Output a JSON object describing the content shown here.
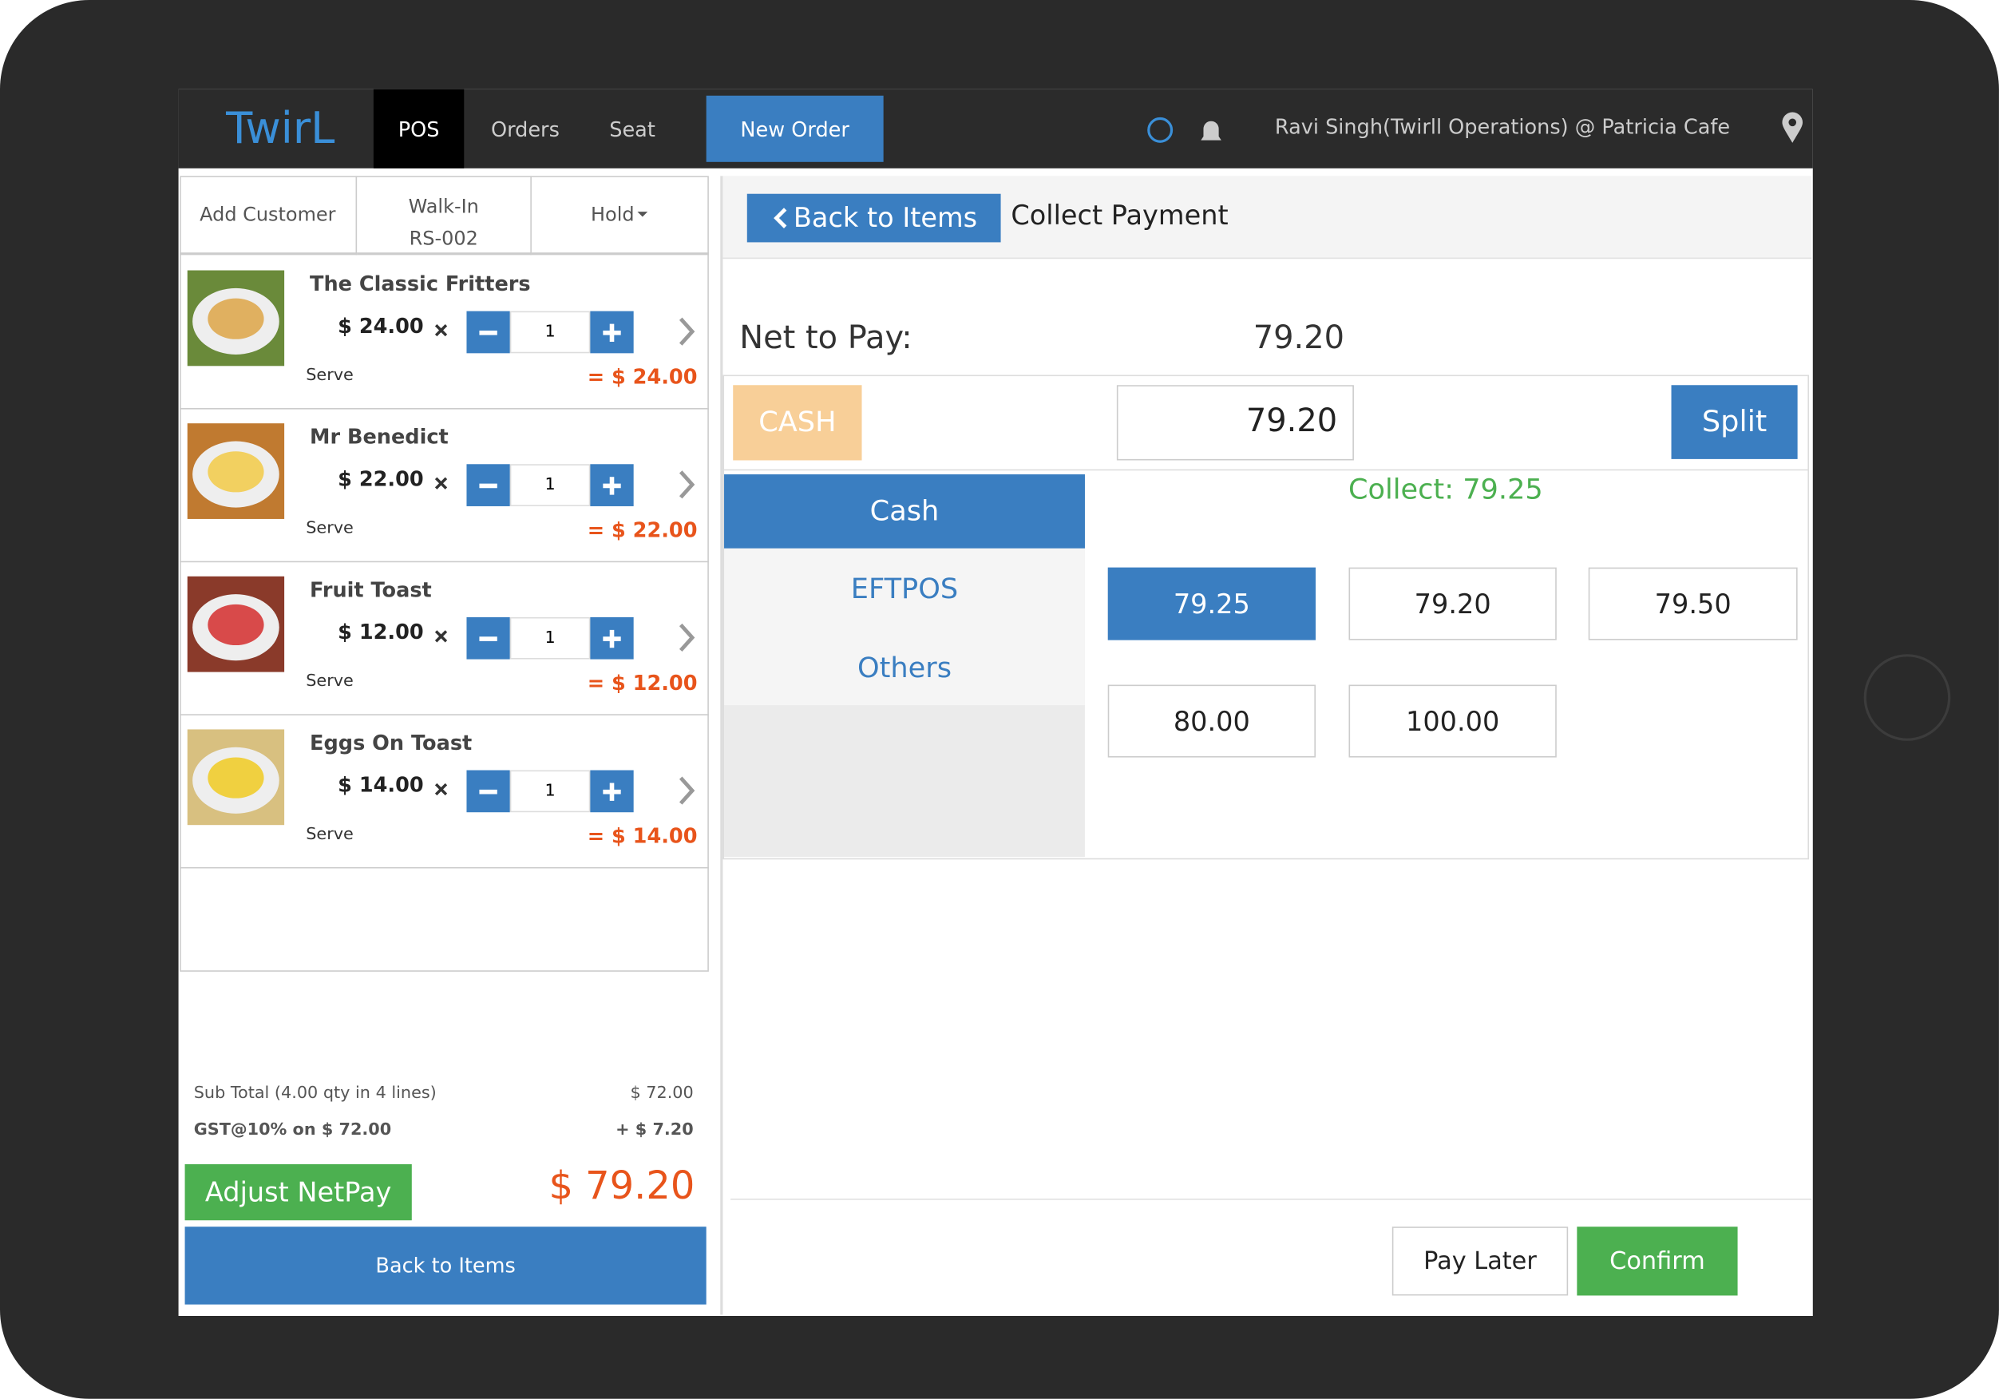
{
  "header": {
    "brand": "TwirL",
    "nav": [
      "POS",
      "Orders",
      "Seat"
    ],
    "new_order": "New Order",
    "user": "Ravi Singh(Twirll Operations) @ Patricia Cafe"
  },
  "order": {
    "add_customer": "Add Customer",
    "walk_in": "Walk-In",
    "order_no": "RS-002",
    "hold": "Hold",
    "items": [
      {
        "name": "The Classic Fritters",
        "price": "$ 24.00",
        "qty": "1",
        "note": "Serve",
        "total": "= $ 24.00"
      },
      {
        "name": "Mr Benedict",
        "price": "$ 22.00",
        "qty": "1",
        "note": "Serve",
        "total": "= $ 22.00"
      },
      {
        "name": "Fruit Toast",
        "price": "$ 12.00",
        "qty": "1",
        "note": "Serve",
        "total": "= $ 12.00"
      },
      {
        "name": "Eggs On Toast",
        "price": "$ 14.00",
        "qty": "1",
        "note": "Serve",
        "total": "= $ 14.00"
      }
    ],
    "subtotal_label": "Sub Total (4.00 qty in 4 lines)",
    "subtotal": "$ 72.00",
    "gst_label": "GST@10% on $ 72.00",
    "gst": "+ $ 7.20",
    "adjust": "Adjust NetPay",
    "net_total": "$ 79.20",
    "back": "Back to Items"
  },
  "payment": {
    "back": "Back to Items",
    "title": "Collect Payment",
    "net_label": "Net to Pay:",
    "net_value": "79.20",
    "method_tag": "CASH",
    "amount": "79.20",
    "split": "Split",
    "methods": [
      "Cash",
      "EFTPOS",
      "Others"
    ],
    "collect": "Collect: 79.25",
    "quick": [
      "79.25",
      "79.20",
      "79.50",
      "80.00",
      "100.00"
    ],
    "pay_later": "Pay Later",
    "confirm": "Confirm"
  }
}
